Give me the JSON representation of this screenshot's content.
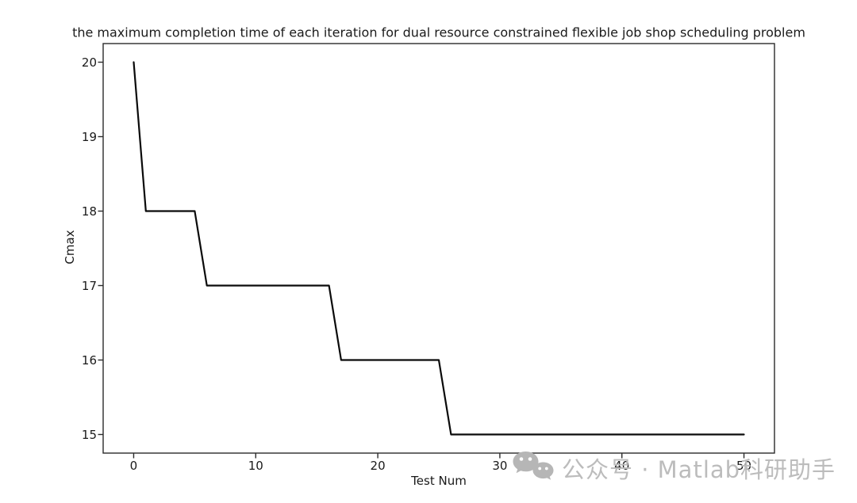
{
  "chart_data": {
    "type": "line",
    "title": "the maximum completion time of each iteration for dual resource constrained flexible job shop scheduling problem",
    "xlabel": "Test Num",
    "ylabel": "Cmax",
    "x": [
      0,
      1,
      2,
      3,
      4,
      5,
      6,
      7,
      8,
      9,
      10,
      11,
      12,
      13,
      14,
      15,
      16,
      17,
      18,
      19,
      20,
      21,
      22,
      23,
      24,
      25,
      26,
      27,
      28,
      29,
      30,
      31,
      32,
      33,
      34,
      35,
      36,
      37,
      38,
      39,
      40,
      41,
      42,
      43,
      44,
      45,
      46,
      47,
      48,
      49,
      50
    ],
    "values": [
      20,
      18,
      18,
      18,
      18,
      18,
      17,
      17,
      17,
      17,
      17,
      17,
      17,
      17,
      17,
      17,
      17,
      16,
      16,
      16,
      16,
      16,
      16,
      16,
      16,
      16,
      15,
      15,
      15,
      15,
      15,
      15,
      15,
      15,
      15,
      15,
      15,
      15,
      15,
      15,
      15,
      15,
      15,
      15,
      15,
      15,
      15,
      15,
      15,
      15,
      15
    ],
    "xlim": [
      -2.5,
      52.5
    ],
    "ylim": [
      14.75,
      20.25
    ],
    "xticks": [
      0,
      10,
      20,
      30,
      40,
      50
    ],
    "yticks": [
      15,
      16,
      17,
      18,
      19,
      20
    ],
    "line_color": "#0a0a0a",
    "spine_color": "#2b2b2b",
    "grid": false,
    "legend": "none"
  },
  "watermark": {
    "icon": "wechat-icon",
    "text": "公众号 · Matlab科研助手",
    "color": "#bcbcbc"
  }
}
